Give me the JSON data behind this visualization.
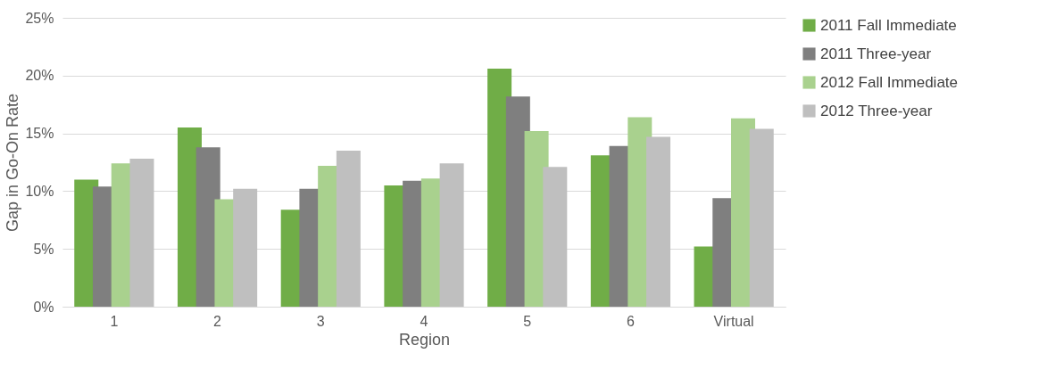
{
  "chart_data": {
    "type": "bar",
    "xlabel": "Region",
    "ylabel": "Gap in Go-On Rate",
    "categories": [
      "1",
      "2",
      "3",
      "4",
      "5",
      "6",
      "Virtual"
    ],
    "series": [
      {
        "name": "2011 Fall Immediate",
        "color": "#70ad47",
        "values": [
          11.0,
          15.5,
          8.4,
          10.5,
          20.6,
          13.1,
          5.2
        ]
      },
      {
        "name": "2011 Three-year",
        "color": "#7f7f7f",
        "values": [
          10.4,
          13.8,
          10.2,
          10.9,
          18.2,
          13.9,
          9.4
        ]
      },
      {
        "name": "2012 Fall Immediate",
        "color": "#a9d18e",
        "values": [
          12.4,
          9.3,
          12.2,
          11.1,
          15.2,
          16.4,
          16.3
        ]
      },
      {
        "name": "2012 Three-year",
        "color": "#bfbfbf",
        "values": [
          12.8,
          10.2,
          13.5,
          12.4,
          12.1,
          14.7,
          15.4
        ]
      }
    ],
    "ylim": [
      0,
      25
    ],
    "yticks": [
      {
        "value": 0,
        "label": "0%"
      },
      {
        "value": 5,
        "label": "5%"
      },
      {
        "value": 10,
        "label": "10%"
      },
      {
        "value": 15,
        "label": "15%"
      },
      {
        "value": 20,
        "label": "20%"
      },
      {
        "value": 25,
        "label": "25%"
      }
    ],
    "grid": "y",
    "legend": "right"
  }
}
